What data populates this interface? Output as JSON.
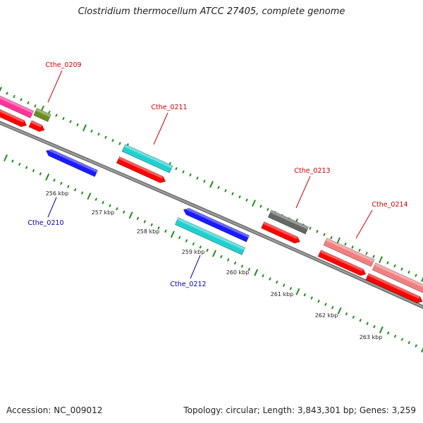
{
  "title": "Clostridium thermocellum ATCC 27405, complete genome",
  "footer": {
    "accession": "Accession: NC_009012",
    "topology": "Topology: circular; Length: 3,843,301 bp; Genes: 3,259"
  },
  "colors": {
    "backbone": "#808080",
    "tick": "#1e8c1e",
    "label_forward": "#cc0000",
    "label_reverse": "#0000aa",
    "cds": "#ff0000",
    "gene_magenta": "#ff3399",
    "gene_olive": "#6b8e23",
    "gene_blue": "#1a1aff",
    "gene_cyan": "#20d0d0",
    "gene_gray": "#666666",
    "gene_pink": "#f08080"
  },
  "ticks": [
    {
      "label": "256 kbp"
    },
    {
      "label": "257 kbp"
    },
    {
      "label": "258 kbp"
    },
    {
      "label": "259 kbp"
    },
    {
      "label": "260 kbp"
    },
    {
      "label": "261 kbp"
    },
    {
      "label": "262 kbp"
    },
    {
      "label": "263 kbp"
    }
  ],
  "gene_labels": [
    {
      "id": "Cthe_0209",
      "strand": "forward"
    },
    {
      "id": "Cthe_0210",
      "strand": "reverse"
    },
    {
      "id": "Cthe_0211",
      "strand": "forward"
    },
    {
      "id": "Cthe_0212",
      "strand": "reverse"
    },
    {
      "id": "Cthe_0213",
      "strand": "forward"
    },
    {
      "id": "Cthe_0214",
      "strand": "forward"
    }
  ]
}
